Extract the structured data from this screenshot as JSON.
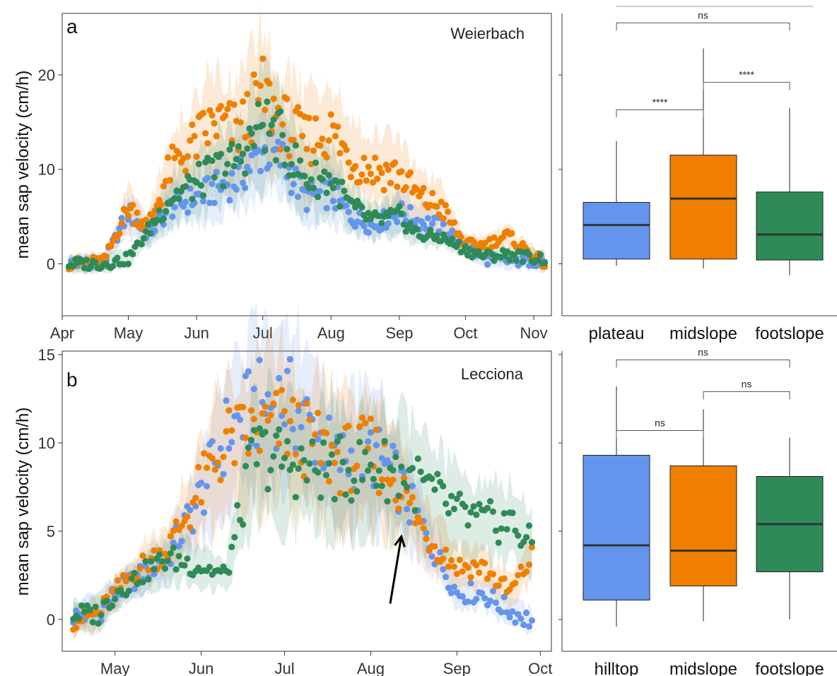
{
  "chart_data": [
    {
      "type": "scatter",
      "panel_label": "a",
      "site": "Weierbach",
      "ylabel": "mean sap velocity  (cm/h)",
      "xlim": [
        "2019-04-01",
        "2019-11-09"
      ],
      "ylim": [
        -5.5,
        26.5
      ],
      "yticks": [
        0,
        10,
        20
      ],
      "xticks": [
        {
          "date": "2019-04-01",
          "label": "Apr"
        },
        {
          "date": "2019-05-01",
          "label": "May"
        },
        {
          "date": "2019-06-01",
          "label": "Jun"
        },
        {
          "date": "2019-07-01",
          "label": "Jul"
        },
        {
          "date": "2019-08-01",
          "label": "Aug"
        },
        {
          "date": "2019-09-01",
          "label": "Sep"
        },
        {
          "date": "2019-10-01",
          "label": "Oct"
        },
        {
          "date": "2019-11-01",
          "label": "Nov"
        }
      ],
      "grid": false,
      "series": [
        {
          "color": "#6495ED",
          "range": [
            "2019-04-04",
            "2019-11-06"
          ],
          "anchors": [
            [
              "2019-04-04",
              0.0
            ],
            [
              "2019-04-20",
              0.2
            ],
            [
              "2019-05-01",
              5.5
            ],
            [
              "2019-05-10",
              3.0
            ],
            [
              "2019-05-20",
              6.0
            ],
            [
              "2019-06-01",
              7.0
            ],
            [
              "2019-06-10",
              8.0
            ],
            [
              "2019-06-20",
              9.0
            ],
            [
              "2019-07-01",
              12.0
            ],
            [
              "2019-07-10",
              11.0
            ],
            [
              "2019-07-20",
              7.0
            ],
            [
              "2019-08-01",
              7.5
            ],
            [
              "2019-08-10",
              5.0
            ],
            [
              "2019-08-20",
              4.0
            ],
            [
              "2019-09-01",
              5.5
            ],
            [
              "2019-09-10",
              4.5
            ],
            [
              "2019-09-20",
              4.0
            ],
            [
              "2019-10-01",
              2.0
            ],
            [
              "2019-10-10",
              0.5
            ],
            [
              "2019-10-20",
              0.3
            ],
            [
              "2019-11-06",
              0.3
            ]
          ]
        },
        {
          "color": "#F07F00",
          "range": [
            "2019-04-04",
            "2019-11-06"
          ],
          "anchors": [
            [
              "2019-04-04",
              0.0
            ],
            [
              "2019-04-20",
              0.3
            ],
            [
              "2019-05-01",
              6.0
            ],
            [
              "2019-05-10",
              4.0
            ],
            [
              "2019-05-20",
              10.0
            ],
            [
              "2019-06-01",
              13.0
            ],
            [
              "2019-06-10",
              15.0
            ],
            [
              "2019-06-20",
              14.0
            ],
            [
              "2019-07-01",
              18.0
            ],
            [
              "2019-07-10",
              15.0
            ],
            [
              "2019-07-20",
              13.0
            ],
            [
              "2019-08-01",
              14.0
            ],
            [
              "2019-08-10",
              11.0
            ],
            [
              "2019-08-20",
              10.0
            ],
            [
              "2019-09-01",
              9.5
            ],
            [
              "2019-09-10",
              7.0
            ],
            [
              "2019-09-20",
              6.0
            ],
            [
              "2019-10-01",
              2.0
            ],
            [
              "2019-10-10",
              2.0
            ],
            [
              "2019-10-20",
              3.0
            ],
            [
              "2019-11-06",
              0.0
            ]
          ]
        },
        {
          "color": "#2E8B57",
          "range": [
            "2019-04-04",
            "2019-11-06"
          ],
          "anchors": [
            [
              "2019-04-04",
              0.0
            ],
            [
              "2019-04-20",
              0.0
            ],
            [
              "2019-05-01",
              0.5
            ],
            [
              "2019-05-10",
              3.5
            ],
            [
              "2019-05-20",
              7.0
            ],
            [
              "2019-06-01",
              8.5
            ],
            [
              "2019-06-10",
              10.0
            ],
            [
              "2019-06-20",
              11.0
            ],
            [
              "2019-07-01",
              15.0
            ],
            [
              "2019-07-10",
              13.0
            ],
            [
              "2019-07-20",
              9.0
            ],
            [
              "2019-08-01",
              9.0
            ],
            [
              "2019-08-10",
              6.0
            ],
            [
              "2019-08-20",
              4.5
            ],
            [
              "2019-09-01",
              5.0
            ],
            [
              "2019-09-10",
              3.0
            ],
            [
              "2019-09-20",
              2.8
            ],
            [
              "2019-10-01",
              1.5
            ],
            [
              "2019-10-10",
              0.8
            ],
            [
              "2019-10-20",
              1.0
            ],
            [
              "2019-11-06",
              0.5
            ]
          ]
        }
      ]
    },
    {
      "type": "box",
      "panel_label": "a",
      "categories": [
        "plateau",
        "midslope",
        "footslope"
      ],
      "colors": [
        "#6495ED",
        "#F07F00",
        "#2E8B57"
      ],
      "ylim": [
        -5.5,
        26.5
      ],
      "boxes": [
        {
          "lower_whisker": -0.2,
          "q1": 0.5,
          "median": 4.1,
          "q3": 6.5,
          "upper_whisker": 13.0
        },
        {
          "lower_whisker": -0.5,
          "q1": 0.5,
          "median": 6.9,
          "q3": 11.5,
          "upper_whisker": 22.8
        },
        {
          "lower_whisker": -1.2,
          "q1": 0.4,
          "median": 3.1,
          "q3": 7.6,
          "upper_whisker": 16.5
        }
      ],
      "comparisons": [
        {
          "between": [
            "plateau",
            "footslope"
          ],
          "label": "ns",
          "y": 25.5
        },
        {
          "between": [
            "midslope",
            "footslope"
          ],
          "label": "****",
          "y": 19.2
        },
        {
          "between": [
            "plateau",
            "midslope"
          ],
          "label": "****",
          "y": 16.3
        }
      ]
    },
    {
      "type": "scatter",
      "panel_label": "b",
      "site": "Lecciona",
      "ylabel": "mean sap velocity  (cm/h)",
      "xlim": [
        "2019-04-12",
        "2019-10-05"
      ],
      "ylim": [
        -1.8,
        15.2
      ],
      "yticks": [
        0,
        5,
        10,
        15
      ],
      "xticks": [
        {
          "date": "2019-05-01",
          "label": "May"
        },
        {
          "date": "2019-06-01",
          "label": "Jun"
        },
        {
          "date": "2019-07-01",
          "label": "Jul"
        },
        {
          "date": "2019-08-01",
          "label": "Aug"
        },
        {
          "date": "2019-09-01",
          "label": "Sep"
        },
        {
          "date": "2019-10-01",
          "label": "Oct"
        }
      ],
      "grid": false,
      "annotation": {
        "type": "arrow",
        "from": [
          "2019-08-08",
          0.9
        ],
        "to": [
          "2019-08-12",
          4.7
        ]
      },
      "series": [
        {
          "color": "#6495ED",
          "range": [
            "2019-04-16",
            "2019-09-28"
          ],
          "anchors": [
            [
              "2019-04-16",
              0.2
            ],
            [
              "2019-04-25",
              0.3
            ],
            [
              "2019-05-01",
              1.5
            ],
            [
              "2019-05-10",
              2.5
            ],
            [
              "2019-05-20",
              3.5
            ],
            [
              "2019-06-01",
              7.0
            ],
            [
              "2019-06-10",
              10.5
            ],
            [
              "2019-06-20",
              12.0
            ],
            [
              "2019-07-01",
              12.5
            ],
            [
              "2019-07-10",
              11.0
            ],
            [
              "2019-07-20",
              9.0
            ],
            [
              "2019-08-01",
              9.5
            ],
            [
              "2019-08-10",
              8.0
            ],
            [
              "2019-08-20",
              5.0
            ],
            [
              "2019-09-01",
              1.5
            ],
            [
              "2019-09-10",
              1.5
            ],
            [
              "2019-09-20",
              0.5
            ],
            [
              "2019-09-28",
              -0.1
            ]
          ]
        },
        {
          "color": "#F07F00",
          "range": [
            "2019-04-16",
            "2019-09-28"
          ],
          "anchors": [
            [
              "2019-04-16",
              0.0
            ],
            [
              "2019-04-25",
              0.3
            ],
            [
              "2019-05-01",
              1.5
            ],
            [
              "2019-05-10",
              3.0
            ],
            [
              "2019-05-20",
              4.0
            ],
            [
              "2019-06-01",
              7.5
            ],
            [
              "2019-06-10",
              10.0
            ],
            [
              "2019-06-20",
              10.5
            ],
            [
              "2019-07-01",
              11.0
            ],
            [
              "2019-07-10",
              10.0
            ],
            [
              "2019-07-20",
              9.0
            ],
            [
              "2019-08-01",
              9.5
            ],
            [
              "2019-08-10",
              8.0
            ],
            [
              "2019-08-20",
              5.0
            ],
            [
              "2019-09-01",
              3.0
            ],
            [
              "2019-09-10",
              3.0
            ],
            [
              "2019-09-20",
              1.5
            ],
            [
              "2019-09-28",
              3.5
            ]
          ]
        },
        {
          "color": "#2E8B57",
          "range": [
            "2019-04-16",
            "2019-09-28"
          ],
          "anchors": [
            [
              "2019-04-16",
              0.3
            ],
            [
              "2019-04-25",
              0.3
            ],
            [
              "2019-05-01",
              1.5
            ],
            [
              "2019-05-10",
              2.5
            ],
            [
              "2019-05-20",
              3.5
            ],
            [
              "2019-06-01",
              3.0
            ],
            [
              "2019-06-10",
              2.5
            ],
            [
              "2019-06-20",
              9.5
            ],
            [
              "2019-07-01",
              9.0
            ],
            [
              "2019-07-10",
              8.5
            ],
            [
              "2019-07-20",
              8.5
            ],
            [
              "2019-08-01",
              8.5
            ],
            [
              "2019-08-10",
              8.5
            ],
            [
              "2019-08-20",
              7.5
            ],
            [
              "2019-09-01",
              6.0
            ],
            [
              "2019-09-10",
              5.5
            ],
            [
              "2019-09-20",
              5.5
            ],
            [
              "2019-09-28",
              4.2
            ]
          ]
        }
      ]
    },
    {
      "type": "box",
      "panel_label": "b",
      "categories": [
        "hilltop",
        "midslope",
        "footslope"
      ],
      "colors": [
        "#6495ED",
        "#F07F00",
        "#2E8B57"
      ],
      "ylim": [
        -1.8,
        15.2
      ],
      "boxes": [
        {
          "lower_whisker": -0.4,
          "q1": 1.1,
          "median": 4.2,
          "q3": 9.3,
          "upper_whisker": 13.2
        },
        {
          "lower_whisker": -0.1,
          "q1": 1.9,
          "median": 3.9,
          "q3": 8.7,
          "upper_whisker": 11.9
        },
        {
          "lower_whisker": 0.0,
          "q1": 2.7,
          "median": 5.4,
          "q3": 8.1,
          "upper_whisker": 10.3
        }
      ],
      "comparisons": [
        {
          "between": [
            "hilltop",
            "footslope"
          ],
          "label": "ns",
          "y": 14.7
        },
        {
          "between": [
            "midslope",
            "footslope"
          ],
          "label": "ns",
          "y": 12.9
        },
        {
          "between": [
            "hilltop",
            "midslope"
          ],
          "label": "ns",
          "y": 10.7
        }
      ]
    }
  ]
}
